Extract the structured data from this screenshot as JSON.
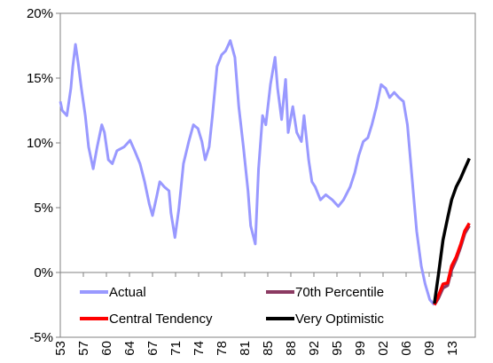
{
  "chart_data": {
    "type": "line",
    "ylim": [
      -5,
      20
    ],
    "yticks": [
      {
        "value": -5,
        "label": "-5%"
      },
      {
        "value": 0,
        "label": "0%"
      },
      {
        "value": 5,
        "label": "5%"
      },
      {
        "value": 10,
        "label": "10%"
      },
      {
        "value": 15,
        "label": "15%"
      },
      {
        "value": 20,
        "label": "20%"
      }
    ],
    "xlim": [
      1953,
      2016
    ],
    "xticks": [
      {
        "value": 1953,
        "label": "53"
      },
      {
        "value": 1956.5,
        "label": "57"
      },
      {
        "value": 1960,
        "label": "60"
      },
      {
        "value": 1963.5,
        "label": "64"
      },
      {
        "value": 1967,
        "label": "67"
      },
      {
        "value": 1970.5,
        "label": "71"
      },
      {
        "value": 1974,
        "label": "74"
      },
      {
        "value": 1977.5,
        "label": "78"
      },
      {
        "value": 1981,
        "label": "81"
      },
      {
        "value": 1984.5,
        "label": "85"
      },
      {
        "value": 1988,
        "label": "88"
      },
      {
        "value": 1991.5,
        "label": "92"
      },
      {
        "value": 1995,
        "label": "95"
      },
      {
        "value": 1998.5,
        "label": "99"
      },
      {
        "value": 2002,
        "label": "02"
      },
      {
        "value": 2005.5,
        "label": "06"
      },
      {
        "value": 2009,
        "label": "09"
      },
      {
        "value": 2012.5,
        "label": "13"
      }
    ],
    "series": [
      {
        "name": "Actual",
        "color": "#9999ff",
        "x": [
          1953,
          1953.3,
          1954,
          1954.6,
          1954.9,
          1955.3,
          1955.7,
          1956.2,
          1956.8,
          1957.3,
          1958,
          1958.6,
          1959.3,
          1959.7,
          1960.3,
          1960.9,
          1961.6,
          1962.7,
          1963.6,
          1964.3,
          1965.1,
          1965.8,
          1966.5,
          1967,
          1967.6,
          1968.1,
          1968.8,
          1969.5,
          1969.8,
          1970.4,
          1971,
          1971.7,
          1972.5,
          1973.2,
          1973.9,
          1974.5,
          1975,
          1975.6,
          1976.1,
          1976.8,
          1977.5,
          1978.1,
          1978.8,
          1979.5,
          1980.1,
          1980.8,
          1981.5,
          1981.9,
          1982.6,
          1983.1,
          1983.7,
          1984.2,
          1984.9,
          1985.6,
          1986,
          1986.6,
          1987.2,
          1987.6,
          1988.3,
          1988.9,
          1989.6,
          1990,
          1990.7,
          1991.2,
          1991.7,
          1992.5,
          1993.3,
          1994.3,
          1995.2,
          1996,
          1997,
          1997.7,
          1998.3,
          1999,
          1999.7,
          2000.3,
          2001,
          2001.7,
          2002.4,
          2003,
          2003.7,
          2004.4,
          2005.1,
          2005.7,
          2006.4,
          2007.1,
          2007.8,
          2008.4,
          2009.1,
          2009.8
        ],
        "values": [
          13.2,
          12.5,
          12.1,
          14.2,
          15.9,
          17.6,
          16.2,
          14.2,
          12.1,
          9.7,
          8.0,
          9.7,
          11.4,
          10.8,
          8.7,
          8.4,
          9.4,
          9.7,
          10.2,
          9.4,
          8.4,
          7.0,
          5.3,
          4.4,
          5.8,
          7.0,
          6.6,
          6.3,
          4.6,
          2.7,
          4.9,
          8.4,
          10.1,
          11.4,
          11.1,
          10.1,
          8.7,
          9.7,
          12.1,
          15.9,
          16.8,
          17.1,
          17.9,
          16.6,
          12.8,
          9.7,
          6.3,
          3.6,
          2.2,
          8.0,
          12.1,
          11.4,
          14.5,
          16.6,
          14.2,
          11.8,
          14.9,
          10.8,
          12.8,
          10.8,
          10.1,
          12.1,
          8.7,
          7.0,
          6.6,
          5.6,
          6.0,
          5.6,
          5.1,
          5.6,
          6.6,
          7.7,
          9.0,
          10.1,
          10.4,
          11.4,
          12.8,
          14.5,
          14.2,
          13.5,
          13.9,
          13.5,
          13.2,
          11.4,
          7.3,
          3.2,
          0.5,
          -0.9,
          -2.1,
          -2.5
        ]
      },
      {
        "name": "70th Percentile",
        "color": "#8b3a62",
        "x": [
          2009.8,
          2010.4,
          2011.1,
          2011.8,
          2012.4,
          2013.1,
          2013.8,
          2014.4,
          2015.1
        ],
        "values": [
          -2.5,
          -2.0,
          -1.2,
          -1.0,
          0.2,
          1.0,
          2.0,
          3.0,
          3.6
        ]
      },
      {
        "name": "Central Tendency",
        "color": "#ff0000",
        "x": [
          2009.8,
          2010.4,
          2011.1,
          2011.8,
          2012.4,
          2013.1,
          2013.8,
          2014.4,
          2015.1
        ],
        "values": [
          -2.5,
          -1.8,
          -0.9,
          -0.8,
          0.5,
          1.2,
          2.2,
          3.2,
          3.8
        ]
      },
      {
        "name": "Very Optimistic",
        "color": "#000000",
        "x": [
          2009.8,
          2010.4,
          2011.1,
          2011.8,
          2012.4,
          2013.1,
          2013.8,
          2014.4,
          2015.1
        ],
        "values": [
          -2.4,
          -0.2,
          2.5,
          4.2,
          5.6,
          6.6,
          7.3,
          8.0,
          8.8
        ]
      }
    ]
  }
}
